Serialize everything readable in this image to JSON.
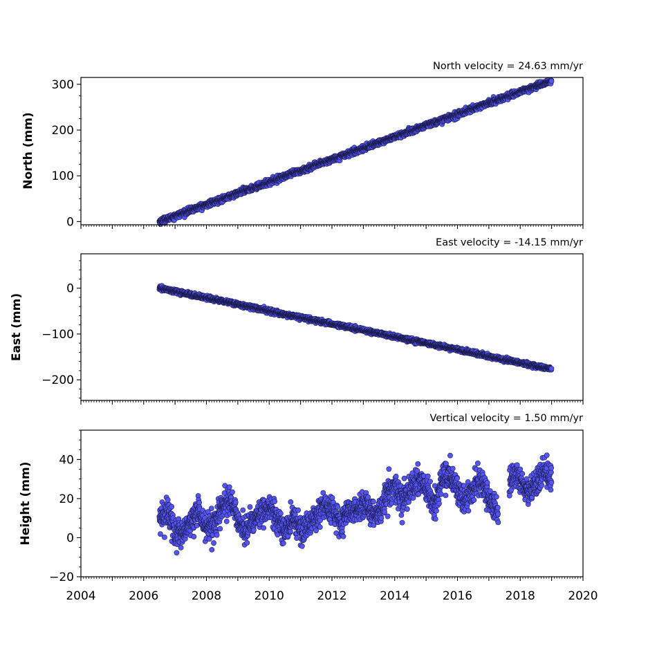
{
  "chart_data": [
    {
      "type": "scatter",
      "title": "North velocity = 24.63 mm/yr",
      "ylabel": "North (mm)",
      "xlim": [
        2004,
        2020
      ],
      "ylim": [
        -7,
        315
      ],
      "yticks": [
        0,
        100,
        200,
        300
      ],
      "marker_color": "#5555f5",
      "edge_color": "#1a1a4a",
      "series": [
        {
          "x": [
            2006.5,
            2007.0,
            2007.5,
            2008.0,
            2008.5,
            2009.0,
            2009.5,
            2010.0,
            2010.5,
            2011.0,
            2011.5,
            2012.0,
            2012.5,
            2013.0,
            2013.5,
            2014.0,
            2014.5,
            2015.0,
            2015.5,
            2016.0,
            2016.5,
            2017.0,
            2017.5,
            2018.0,
            2018.5,
            2019.0
          ],
          "y": [
            0,
            12,
            25,
            37,
            49,
            62,
            74,
            86,
            99,
            111,
            123,
            136,
            148,
            160,
            173,
            185,
            197,
            210,
            222,
            234,
            247,
            259,
            271,
            284,
            296,
            308
          ]
        }
      ]
    },
    {
      "type": "scatter",
      "title": "East velocity = -14.15 mm/yr",
      "ylabel": "East (mm)",
      "xlim": [
        2004,
        2020
      ],
      "ylim": [
        -245,
        75
      ],
      "yticks": [
        0,
        -100,
        -200
      ],
      "ytick_labels": [
        "0",
        "−100",
        "−200"
      ],
      "marker_color": "#5555f5",
      "edge_color": "#1a1a4a",
      "series": [
        {
          "x": [
            2006.5,
            2007.0,
            2007.5,
            2008.0,
            2008.5,
            2009.0,
            2009.5,
            2010.0,
            2010.5,
            2011.0,
            2011.5,
            2012.0,
            2012.5,
            2013.0,
            2013.5,
            2014.0,
            2014.5,
            2015.0,
            2015.5,
            2016.0,
            2016.5,
            2017.0,
            2017.5,
            2018.0,
            2018.5,
            2019.0
          ],
          "y": [
            0,
            -7,
            -14,
            -21,
            -28,
            -35,
            -42,
            -50,
            -57,
            -64,
            -71,
            -78,
            -85,
            -92,
            -99,
            -106,
            -113,
            -120,
            -127,
            -134,
            -141,
            -149,
            -156,
            -163,
            -170,
            -177
          ]
        }
      ]
    },
    {
      "type": "scatter",
      "title": "Vertical velocity = 1.50 mm/yr",
      "ylabel": "Height (mm)",
      "xlim": [
        2004,
        2020
      ],
      "ylim": [
        -20,
        55
      ],
      "yticks": [
        -20,
        0,
        20,
        40
      ],
      "ytick_labels": [
        "−20",
        "0",
        "20",
        "40"
      ],
      "xticks": [
        2004,
        2006,
        2008,
        2010,
        2012,
        2014,
        2016,
        2018,
        2020
      ],
      "marker_color": "#5555f5",
      "edge_color": "#1a1a4a",
      "series": [
        {
          "x": [
            2006.5,
            2006.75,
            2007.0,
            2007.25,
            2007.5,
            2007.75,
            2008.0,
            2008.25,
            2008.5,
            2008.75,
            2009.0,
            2009.25,
            2009.5,
            2009.75,
            2010.0,
            2010.25,
            2010.5,
            2010.75,
            2011.0,
            2011.25,
            2011.5,
            2011.75,
            2012.0,
            2012.25,
            2012.5,
            2012.75,
            2013.0,
            2013.25,
            2013.5,
            2013.75,
            2014.0,
            2014.25,
            2014.5,
            2014.75,
            2015.0,
            2015.25,
            2015.5,
            2015.75,
            2016.0,
            2016.25,
            2016.5,
            2016.75,
            2017.0,
            2017.25,
            2017.75,
            2018.0,
            2018.25,
            2018.5,
            2018.75,
            2019.0
          ],
          "y": [
            8,
            15,
            2,
            1,
            8,
            13,
            5,
            6,
            15,
            19,
            10,
            3,
            9,
            13,
            15,
            10,
            3,
            11,
            5,
            6,
            10,
            17,
            13,
            7,
            12,
            15,
            18,
            12,
            14,
            22,
            26,
            18,
            24,
            30,
            26,
            15,
            30,
            33,
            25,
            18,
            25,
            30,
            20,
            12,
            32,
            30,
            23,
            28,
            34,
            30
          ]
        }
      ]
    }
  ]
}
